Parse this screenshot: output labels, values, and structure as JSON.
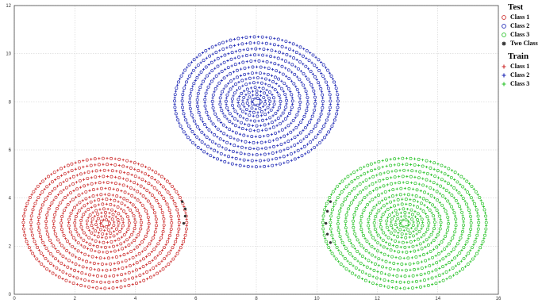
{
  "chart_data": {
    "type": "scatter",
    "xlim": [
      0,
      16
    ],
    "ylim": [
      0,
      12
    ],
    "x_ticks": [
      "0",
      "2",
      "4",
      "6",
      "8",
      "10",
      "12",
      "14",
      "16"
    ],
    "y_ticks": [
      "0",
      "2",
      "4",
      "6",
      "8",
      "10",
      "12"
    ],
    "grid": true,
    "legend_position": "right",
    "clusters": [
      {
        "class": "Class 1",
        "center": [
          3,
          2.95
        ],
        "radii": [
          0.15,
          0.3,
          0.45,
          0.6,
          0.8,
          1.0,
          1.2,
          1.45,
          1.7,
          1.95,
          2.2,
          2.45,
          2.7
        ],
        "y_scale": 1.0,
        "color": "#cc2a2a"
      },
      {
        "class": "Class 2",
        "center": [
          8,
          8.0
        ],
        "radii": [
          0.15,
          0.3,
          0.45,
          0.6,
          0.8,
          1.0,
          1.2,
          1.45,
          1.7,
          1.95,
          2.2,
          2.45,
          2.7
        ],
        "y_scale": 1.0,
        "color": "#1c26b4"
      },
      {
        "class": "Class 3",
        "center": [
          12.9,
          2.95
        ],
        "radii": [
          0.15,
          0.3,
          0.45,
          0.6,
          0.8,
          1.0,
          1.2,
          1.45,
          1.7,
          1.95,
          2.2,
          2.45,
          2.7
        ],
        "y_scale": 1.0,
        "color": "#27c227"
      }
    ],
    "two_class_points": [
      [
        5.55,
        3.85
      ],
      [
        5.65,
        3.55
      ],
      [
        5.65,
        3.25
      ],
      [
        5.6,
        2.95
      ],
      [
        10.45,
        3.85
      ],
      [
        10.35,
        3.45
      ],
      [
        10.3,
        2.95
      ],
      [
        10.35,
        2.5
      ],
      [
        10.45,
        2.15
      ]
    ],
    "two_class_color": "#333333"
  },
  "legend": {
    "test_title": "Test",
    "test_items": [
      {
        "label": "Class 1",
        "marker": "circle",
        "color": "#cc2a2a"
      },
      {
        "label": "Class 2",
        "marker": "circle",
        "color": "#1c26b4"
      },
      {
        "label": "Class 3",
        "marker": "circle",
        "color": "#27c227"
      },
      {
        "label": "Two Class",
        "marker": "star",
        "color": "#333333"
      }
    ],
    "train_title": "Train",
    "train_items": [
      {
        "label": "Class 1",
        "marker": "plus",
        "color": "#cc2a2a"
      },
      {
        "label": "Class 2",
        "marker": "plus",
        "color": "#1c26b4"
      },
      {
        "label": "Class 3",
        "marker": "plus",
        "color": "#27c227"
      }
    ]
  }
}
